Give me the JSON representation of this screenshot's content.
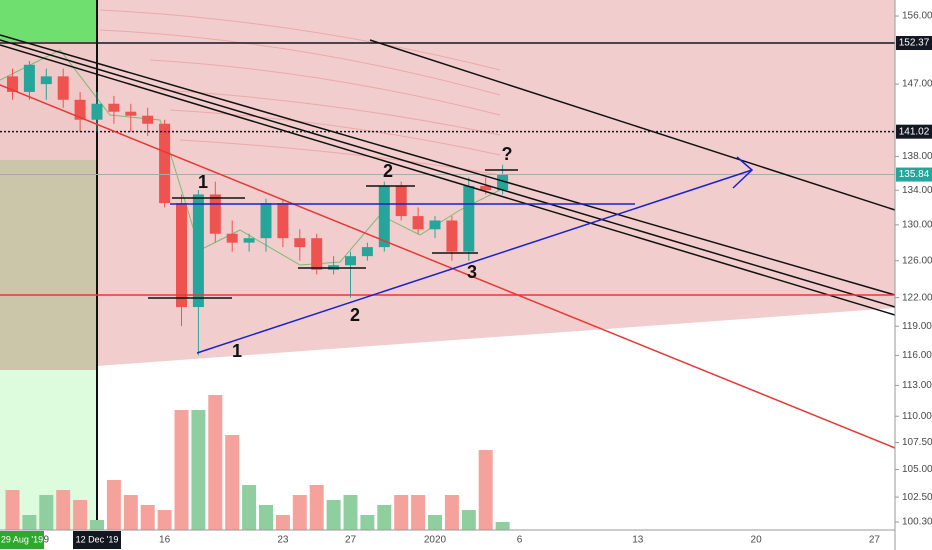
{
  "chart_data": {
    "type": "candlestick",
    "log_scale": true,
    "up_color": "#26a69a",
    "down_color": "#ef5350",
    "volume_up_color": "#8fcf9f",
    "volume_down_color": "#f6a29c",
    "categories": [
      null,
      null,
      "9",
      null,
      null,
      "12 Dec '19",
      null,
      null,
      null,
      "16",
      null,
      null,
      null,
      null,
      null,
      null,
      "23",
      null,
      null,
      null,
      "27",
      null,
      null,
      null,
      null,
      "2020",
      null,
      null,
      null,
      null,
      "6",
      null,
      null,
      null,
      null,
      null,
      null,
      "13",
      null,
      null,
      null,
      null,
      null,
      null,
      "20",
      null,
      null,
      null,
      null,
      null,
      null,
      "27"
    ],
    "open": [
      148,
      146,
      147,
      148,
      145,
      142.5,
      144.5,
      143.5,
      143,
      142,
      132.5,
      121,
      133.5,
      129,
      128,
      128.5,
      132.5,
      128.5,
      128.5,
      125,
      125.5,
      126.5,
      127.5,
      134.5,
      131,
      129.5,
      130.5,
      127,
      134.5,
      134,
      null,
      null,
      null,
      null,
      null,
      null,
      null,
      null,
      null,
      null,
      null,
      null,
      null,
      null,
      null,
      null,
      null,
      null,
      null,
      null,
      null,
      null
    ],
    "high": [
      149,
      150,
      149,
      149,
      146,
      146,
      145.5,
      144.5,
      144,
      142.5,
      133.5,
      134,
      135,
      130.5,
      129,
      133,
      133,
      129.5,
      129,
      126.5,
      127,
      128,
      135,
      135,
      132,
      131,
      131,
      135.5,
      135.5,
      137,
      null,
      null,
      null,
      null,
      null,
      null,
      null,
      null,
      null,
      null,
      null,
      null,
      null,
      null,
      null,
      null,
      null,
      null,
      null,
      null,
      null,
      null
    ],
    "low": [
      145,
      145,
      145,
      144,
      141,
      141,
      142,
      141,
      140.5,
      132,
      119,
      116,
      128,
      127,
      127,
      127,
      127.5,
      126,
      124.5,
      124.5,
      122,
      126,
      127,
      130.5,
      129,
      128.5,
      126,
      126,
      133.5,
      133.5,
      null,
      null,
      null,
      null,
      null,
      null,
      null,
      null,
      null,
      null,
      null,
      null,
      null,
      null,
      null,
      null,
      null,
      null,
      null,
      null,
      null,
      null
    ],
    "close": [
      146,
      149.5,
      148,
      145,
      142.5,
      144.5,
      143.5,
      143,
      142,
      132.5,
      121,
      133.5,
      129,
      128,
      128.5,
      132.5,
      128.5,
      127.5,
      125,
      125.5,
      126.5,
      127.5,
      134.5,
      131,
      129.5,
      130.5,
      127,
      134.5,
      134,
      135.84,
      null,
      null,
      null,
      null,
      null,
      null,
      null,
      null,
      null,
      null,
      null,
      null,
      null,
      null,
      null,
      null,
      null,
      null,
      null,
      null,
      null,
      null
    ],
    "volume": [
      40,
      15,
      35,
      40,
      30,
      10,
      50,
      35,
      25,
      20,
      120,
      120,
      135,
      95,
      45,
      25,
      15,
      35,
      45,
      30,
      35,
      15,
      25,
      35,
      35,
      15,
      35,
      20,
      80,
      8,
      null,
      null,
      null,
      null,
      null,
      null,
      null,
      null,
      null,
      null,
      null,
      null,
      null,
      null,
      null,
      null,
      null,
      null,
      null,
      null,
      null,
      null
    ],
    "ylim": [
      99.6,
      158.2
    ],
    "yticks": [
      {
        "value": 156,
        "label": "156.00"
      },
      {
        "value": 147,
        "label": "147.00"
      },
      {
        "value": 138,
        "label": "138.00"
      },
      {
        "value": 134,
        "label": "134.00"
      },
      {
        "value": 130,
        "label": "130.00"
      },
      {
        "value": 126,
        "label": "126.00"
      },
      {
        "value": 122,
        "label": "122.00"
      },
      {
        "value": 119,
        "label": "119.00"
      },
      {
        "value": 116,
        "label": "116.00"
      },
      {
        "value": 113,
        "label": "113.00"
      },
      {
        "value": 110,
        "label": "110.00"
      },
      {
        "value": 107.5,
        "label": "107.50"
      },
      {
        "value": 105,
        "label": "105.00"
      },
      {
        "value": 102.5,
        "label": "102.50"
      },
      {
        "value": 100.3,
        "label": "100.30"
      }
    ],
    "price_lines": [
      {
        "value": 152.37,
        "label": "152.37",
        "color": "#131722"
      },
      {
        "value": 141.02,
        "label": "141.02",
        "color": "#131722"
      },
      {
        "value": 135.84,
        "label": "135.84",
        "color": "#26a69a"
      }
    ],
    "left_time_label": "29 Aug '19",
    "annotations": [
      "1",
      "2",
      "3",
      "?",
      "1",
      "2"
    ]
  }
}
